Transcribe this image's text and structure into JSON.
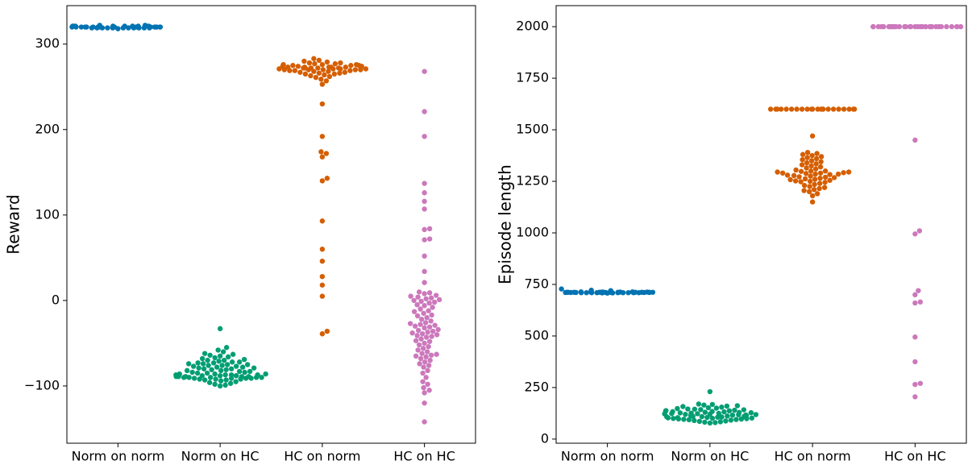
{
  "chart_data": [
    {
      "type": "swarm",
      "ylabel": "Reward",
      "categories": [
        "Norm on norm",
        "Norm on HC",
        "HC on norm",
        "HC on HC"
      ],
      "colors": [
        "#0173b2",
        "#029e73",
        "#d55e00",
        "#cc78bc"
      ],
      "ylim": [
        -167,
        345
      ],
      "yticks": [
        {
          "value": -100,
          "label": "−100"
        },
        0,
        100,
        200,
        300
      ],
      "values": [
        [
          321,
          320,
          319,
          320,
          321,
          319,
          320,
          320,
          319,
          321,
          320,
          319,
          320,
          321,
          320,
          319,
          320,
          320,
          321,
          319,
          320,
          319,
          320,
          321,
          320,
          319,
          320,
          320,
          319,
          321,
          322,
          318,
          320,
          321,
          319,
          320,
          322,
          319,
          320,
          321
        ],
        [
          -33,
          -55,
          -58,
          -60,
          -62,
          -63,
          -64,
          -65,
          -66,
          -67,
          -68,
          -69,
          -70,
          -70,
          -71,
          -72,
          -72,
          -73,
          -73,
          -74,
          -74,
          -75,
          -75,
          -76,
          -76,
          -77,
          -77,
          -78,
          -78,
          -79,
          -79,
          -80,
          -80,
          -81,
          -81,
          -82,
          -82,
          -83,
          -83,
          -84,
          -84,
          -85,
          -85,
          -86,
          -86,
          -87,
          -87,
          -87,
          -88,
          -88,
          -88,
          -89,
          -89,
          -89,
          -89,
          -90,
          -90,
          -90,
          -90,
          -91,
          -91,
          -91,
          -92,
          -92,
          -93,
          -93,
          -94,
          -95,
          -96,
          -97,
          -98,
          -99,
          -100,
          -88,
          -89,
          -90,
          -86,
          -87,
          -91,
          -92
        ],
        [
          283,
          281,
          280,
          279,
          278,
          278,
          277,
          276,
          276,
          275,
          275,
          274,
          274,
          273,
          273,
          273,
          272,
          272,
          272,
          271,
          271,
          271,
          270,
          270,
          270,
          270,
          269,
          269,
          269,
          268,
          268,
          267,
          267,
          266,
          266,
          265,
          265,
          264,
          263,
          262,
          261,
          259,
          257,
          253,
          274,
          273,
          272,
          271,
          270,
          276,
          275,
          277,
          273,
          272,
          230,
          192,
          174,
          172,
          168,
          143,
          140,
          93,
          60,
          46,
          28,
          18,
          5,
          -36,
          -39
        ],
        [
          268,
          221,
          192,
          137,
          126,
          116,
          107,
          84,
          83,
          72,
          71,
          52,
          34,
          21,
          10,
          9,
          8,
          6,
          5,
          4,
          3,
          2,
          1,
          0,
          -1,
          -2,
          -3,
          -5,
          -6,
          -8,
          -10,
          -12,
          -13,
          -15,
          -17,
          -18,
          -20,
          -22,
          -24,
          -26,
          -27,
          -28,
          -29,
          -30,
          -31,
          -32,
          -34,
          -35,
          -36,
          -37,
          -38,
          -39,
          -40,
          -41,
          -42,
          -43,
          -45,
          -47,
          -48,
          -50,
          -52,
          -54,
          -56,
          -58,
          -60,
          -62,
          -63,
          -64,
          -65,
          -66,
          -68,
          -70,
          -72,
          -74,
          -76,
          -78,
          -82,
          -85,
          -90,
          -95,
          -98,
          -102,
          -105,
          -108,
          -120,
          -142
        ]
      ]
    },
    {
      "type": "swarm",
      "ylabel": "Episode length",
      "categories": [
        "Norm on norm",
        "Norm on HC",
        "HC on norm",
        "HC on HC"
      ],
      "colors": [
        "#0173b2",
        "#029e73",
        "#d55e00",
        "#cc78bc"
      ],
      "ylim": [
        -20,
        2102
      ],
      "yticks": [
        0,
        250,
        500,
        750,
        1000,
        1250,
        1500,
        1750,
        2000
      ],
      "values": [
        [
          712,
          711,
          710,
          712,
          713,
          710,
          711,
          712,
          709,
          713,
          712,
          710,
          711,
          714,
          712,
          710,
          711,
          712,
          713,
          709,
          712,
          710,
          711,
          713,
          712,
          710,
          711,
          712,
          710,
          714,
          728,
          708,
          712,
          713,
          710,
          711,
          720,
          710,
          712,
          722
        ],
        [
          230,
          170,
          168,
          165,
          162,
          160,
          158,
          155,
          152,
          150,
          148,
          146,
          145,
          143,
          142,
          140,
          138,
          137,
          135,
          134,
          133,
          132,
          130,
          129,
          128,
          127,
          126,
          125,
          124,
          123,
          122,
          121,
          120,
          119,
          118,
          117,
          116,
          115,
          114,
          113,
          112,
          111,
          110,
          109,
          108,
          107,
          106,
          105,
          104,
          103,
          102,
          101,
          100,
          99,
          98,
          97,
          96,
          95,
          94,
          92,
          90,
          88,
          86,
          84,
          82,
          80,
          78
        ],
        [
          1600,
          1600,
          1600,
          1600,
          1600,
          1600,
          1600,
          1600,
          1600,
          1600,
          1600,
          1600,
          1600,
          1600,
          1600,
          1600,
          1600,
          1600,
          1600,
          1600,
          1600,
          1600,
          1470,
          1390,
          1385,
          1380,
          1375,
          1370,
          1365,
          1360,
          1355,
          1350,
          1345,
          1340,
          1335,
          1330,
          1325,
          1320,
          1315,
          1310,
          1305,
          1300,
          1298,
          1295,
          1292,
          1290,
          1288,
          1285,
          1283,
          1280,
          1278,
          1275,
          1272,
          1270,
          1268,
          1265,
          1262,
          1260,
          1258,
          1255,
          1252,
          1250,
          1248,
          1245,
          1240,
          1235,
          1230,
          1225,
          1220,
          1215,
          1210,
          1205,
          1200,
          1190,
          1180,
          1150,
          1300,
          1290,
          1285,
          1295
        ],
        [
          2000,
          2000,
          2000,
          2000,
          2000,
          2000,
          2000,
          2000,
          2000,
          2000,
          2000,
          2000,
          2000,
          2000,
          2000,
          2000,
          2000,
          2000,
          2000,
          2000,
          2000,
          2000,
          2000,
          2000,
          2000,
          2000,
          2000,
          2000,
          2000,
          2000,
          2000,
          2000,
          2000,
          2000,
          2000,
          1450,
          1010,
          995,
          720,
          700,
          665,
          660,
          495,
          375,
          270,
          265,
          205
        ]
      ]
    }
  ]
}
